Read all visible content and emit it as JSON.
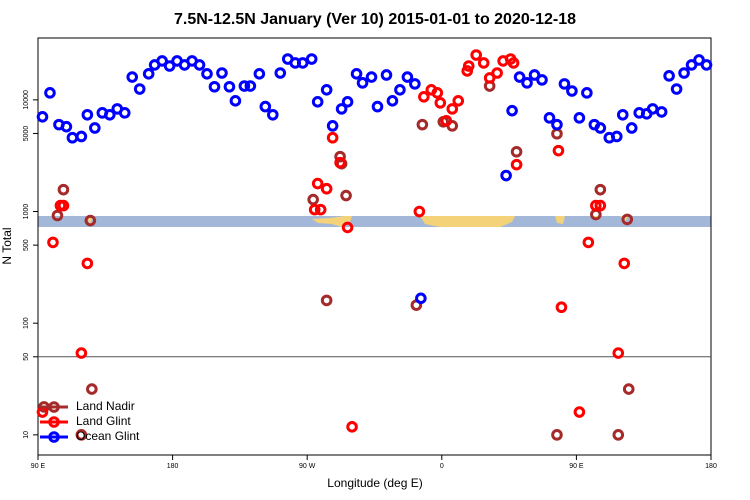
{
  "chart_data": {
    "type": "scatter",
    "title": "7.5N-12.5N January (Ver 10)   2015-01-01 to 2020-12-18",
    "x_label": "Longitude (deg E)",
    "y_label": "N Total",
    "log_y": true,
    "xlim": [
      90,
      540
    ],
    "ylim": [
      6.6,
      35800
    ],
    "xticks": [
      {
        "value": 90,
        "label": "90 E"
      },
      180,
      {
        "value": 270,
        "label": "90 W"
      },
      {
        "value": 360,
        "label": "0"
      },
      {
        "value": 450,
        "label": "90 E"
      },
      {
        "value": 540,
        "label": "180"
      }
    ],
    "yticks": [
      10,
      50,
      100,
      500,
      1000,
      5000,
      10000
    ],
    "reference_line": 50,
    "legend": "bottom-left",
    "series": [
      {
        "name": "Land Nadir",
        "color": "#a52a2a",
        "x": [
          94,
          103,
          107,
          119,
          125,
          126,
          274,
          283,
          292,
          293,
          296,
          343,
          347,
          361,
          367,
          392,
          410,
          437,
          437,
          463,
          466,
          478,
          484,
          485
        ],
        "values": [
          17.8,
          921,
          1570,
          10,
          830,
          25.7,
          1280,
          160,
          3100,
          2680,
          1390,
          145,
          6000,
          6360,
          5850,
          13300,
          3430,
          4970,
          10,
          940,
          1570,
          10,
          850,
          25.7
        ]
      },
      {
        "name": "Land Glint",
        "color": "#ff0000",
        "x": [
          93,
          100,
          105,
          107,
          119,
          123,
          277,
          275,
          279,
          283,
          287,
          292,
          297,
          300,
          345,
          348,
          353,
          357,
          359,
          363,
          367,
          371,
          377,
          378,
          383,
          388,
          392,
          397,
          401,
          406,
          408,
          410,
          438,
          440,
          452,
          458,
          463,
          466,
          478,
          482
        ],
        "values": [
          16,
          529,
          1130,
          1130,
          54,
          343,
          1780,
          1040,
          1040,
          1600,
          4580,
          2740,
          720,
          11.8,
          1000,
          10650,
          12300,
          11550,
          9400,
          6500,
          8300,
          9800,
          18150,
          20100,
          25200,
          21400,
          15700,
          17400,
          22300,
          23200,
          21400,
          2630,
          3510,
          139,
          16,
          529,
          1130,
          1130,
          54,
          343
        ]
      },
      {
        "name": "Ocean Glint",
        "color": "#0000ff",
        "x": [
          93,
          98,
          104,
          109,
          113,
          119,
          123,
          128,
          133,
          138,
          143,
          148,
          153,
          158,
          164,
          168,
          173,
          178,
          183,
          188,
          193,
          198,
          203,
          208,
          213,
          218,
          222,
          228,
          232,
          238,
          242,
          247,
          252,
          257,
          262,
          267,
          273,
          277,
          283,
          287,
          293,
          297,
          303,
          307,
          313,
          317,
          323,
          327,
          332,
          337,
          342,
          346,
          403,
          407,
          412,
          417,
          422,
          427,
          432,
          437,
          442,
          447,
          452,
          457,
          462,
          466,
          472,
          477,
          481,
          487,
          492,
          497,
          501,
          507,
          512,
          517,
          522,
          527,
          532,
          537
        ],
        "values": [
          7050,
          11550,
          6000,
          5750,
          4580,
          4700,
          7350,
          5600,
          7650,
          7350,
          8300,
          7650,
          16000,
          12500,
          17100,
          20550,
          22300,
          20100,
          22300,
          20550,
          22300,
          20550,
          17100,
          13100,
          17400,
          13100,
          9800,
          13300,
          13300,
          17100,
          8700,
          7350,
          17400,
          23200,
          21400,
          21400,
          23200,
          9600,
          12300,
          5850,
          8300,
          9600,
          17100,
          14200,
          16000,
          8700,
          16700,
          9800,
          12300,
          16000,
          13900,
          167,
          2100,
          8000,
          16000,
          14200,
          16700,
          15100,
          6900,
          6000,
          13900,
          12000,
          6900,
          11550,
          6000,
          5600,
          4580,
          4700,
          7350,
          5600,
          7650,
          7500,
          8300,
          7800,
          16400,
          12500,
          17400,
          20550,
          22750,
          20550
        ]
      }
    ]
  }
}
